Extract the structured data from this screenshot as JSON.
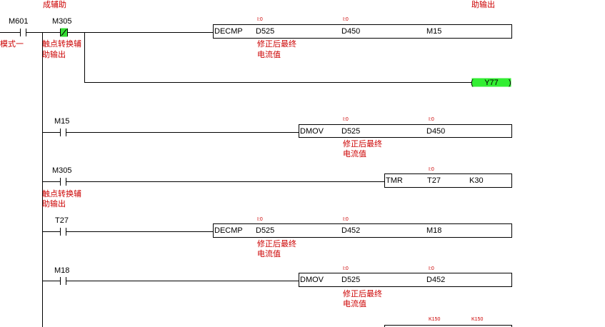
{
  "header": {
    "left_note": "成辅助",
    "right_note": "助输出"
  },
  "rungs": [
    {
      "contacts": [
        {
          "device": "M601",
          "comment": [
            "模式一"
          ]
        },
        {
          "device": "M305",
          "comment": [
            "触点转换辅",
            "助输出"
          ]
        }
      ],
      "instruction": {
        "op": "DECMP",
        "operands": [
          {
            "text": "D525",
            "tag": "I:0",
            "comment": [
              "修正后最终",
              "电流值"
            ]
          },
          {
            "text": "D450",
            "tag": "I:0"
          },
          {
            "text": "M15"
          }
        ]
      },
      "coil": "Y77"
    },
    {
      "contacts": [
        {
          "device": "M15"
        }
      ],
      "instruction": {
        "op": "DMOV",
        "operands": [
          {
            "text": "D525",
            "tag": "I:0",
            "comment": [
              "修正后最终",
              "电流值"
            ]
          },
          {
            "text": "D450",
            "tag": "I:0"
          }
        ]
      }
    },
    {
      "contacts": [
        {
          "device": "M305",
          "comment": [
            "触点转换辅",
            "助输出"
          ]
        }
      ],
      "instruction": {
        "op": "TMR",
        "operands": [
          {
            "text": "T27",
            "tag": "I:0"
          },
          {
            "text": "K30"
          }
        ]
      }
    },
    {
      "contacts": [
        {
          "device": "T27"
        }
      ],
      "instruction": {
        "op": "DECMP",
        "operands": [
          {
            "text": "D525",
            "tag": "I:0",
            "comment": [
              "修正后最终",
              "电流值"
            ]
          },
          {
            "text": "D452",
            "tag": "I:0"
          },
          {
            "text": "M18"
          }
        ]
      }
    },
    {
      "contacts": [
        {
          "device": "M18"
        }
      ],
      "instruction": {
        "op": "DMOV",
        "operands": [
          {
            "text": "D525",
            "tag": "I:0",
            "comment": [
              "修正后最终",
              "电流值"
            ]
          },
          {
            "text": "D452",
            "tag": "I:0"
          }
        ]
      }
    },
    {
      "instruction": {
        "operands": [
          {
            "tag": "K150"
          },
          {
            "tag": "K150"
          }
        ]
      }
    }
  ]
}
